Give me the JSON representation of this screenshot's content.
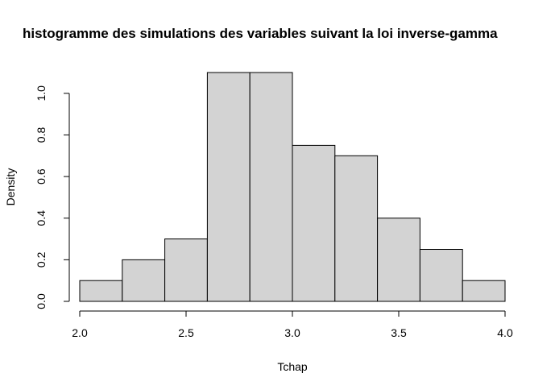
{
  "chart_data": {
    "type": "bar",
    "title": "histogramme des simulations des variables suivant la loi inverse-gamma",
    "xlabel": "Tchap",
    "ylabel": "Density",
    "bins": [
      {
        "x0": 2.0,
        "x1": 2.2,
        "density": 0.1
      },
      {
        "x0": 2.2,
        "x1": 2.4,
        "density": 0.2
      },
      {
        "x0": 2.4,
        "x1": 2.6,
        "density": 0.3
      },
      {
        "x0": 2.6,
        "x1": 2.8,
        "density": 1.1
      },
      {
        "x0": 2.8,
        "x1": 3.0,
        "density": 1.1
      },
      {
        "x0": 3.0,
        "x1": 3.2,
        "density": 0.75
      },
      {
        "x0": 3.2,
        "x1": 3.4,
        "density": 0.7
      },
      {
        "x0": 3.4,
        "x1": 3.6,
        "density": 0.4
      },
      {
        "x0": 3.6,
        "x1": 3.8,
        "density": 0.25
      },
      {
        "x0": 3.8,
        "x1": 4.0,
        "density": 0.1
      }
    ],
    "xlim": [
      2.0,
      4.0
    ],
    "ylim": [
      0,
      1.1
    ],
    "xticks": [
      "2.0",
      "2.5",
      "3.0",
      "3.5",
      "4.0"
    ],
    "yticks": [
      "0.0",
      "0.2",
      "0.4",
      "0.6",
      "0.8",
      "1.0"
    ],
    "colors": {
      "bar_fill": "#d3d3d3",
      "bar_stroke": "#000000"
    }
  }
}
